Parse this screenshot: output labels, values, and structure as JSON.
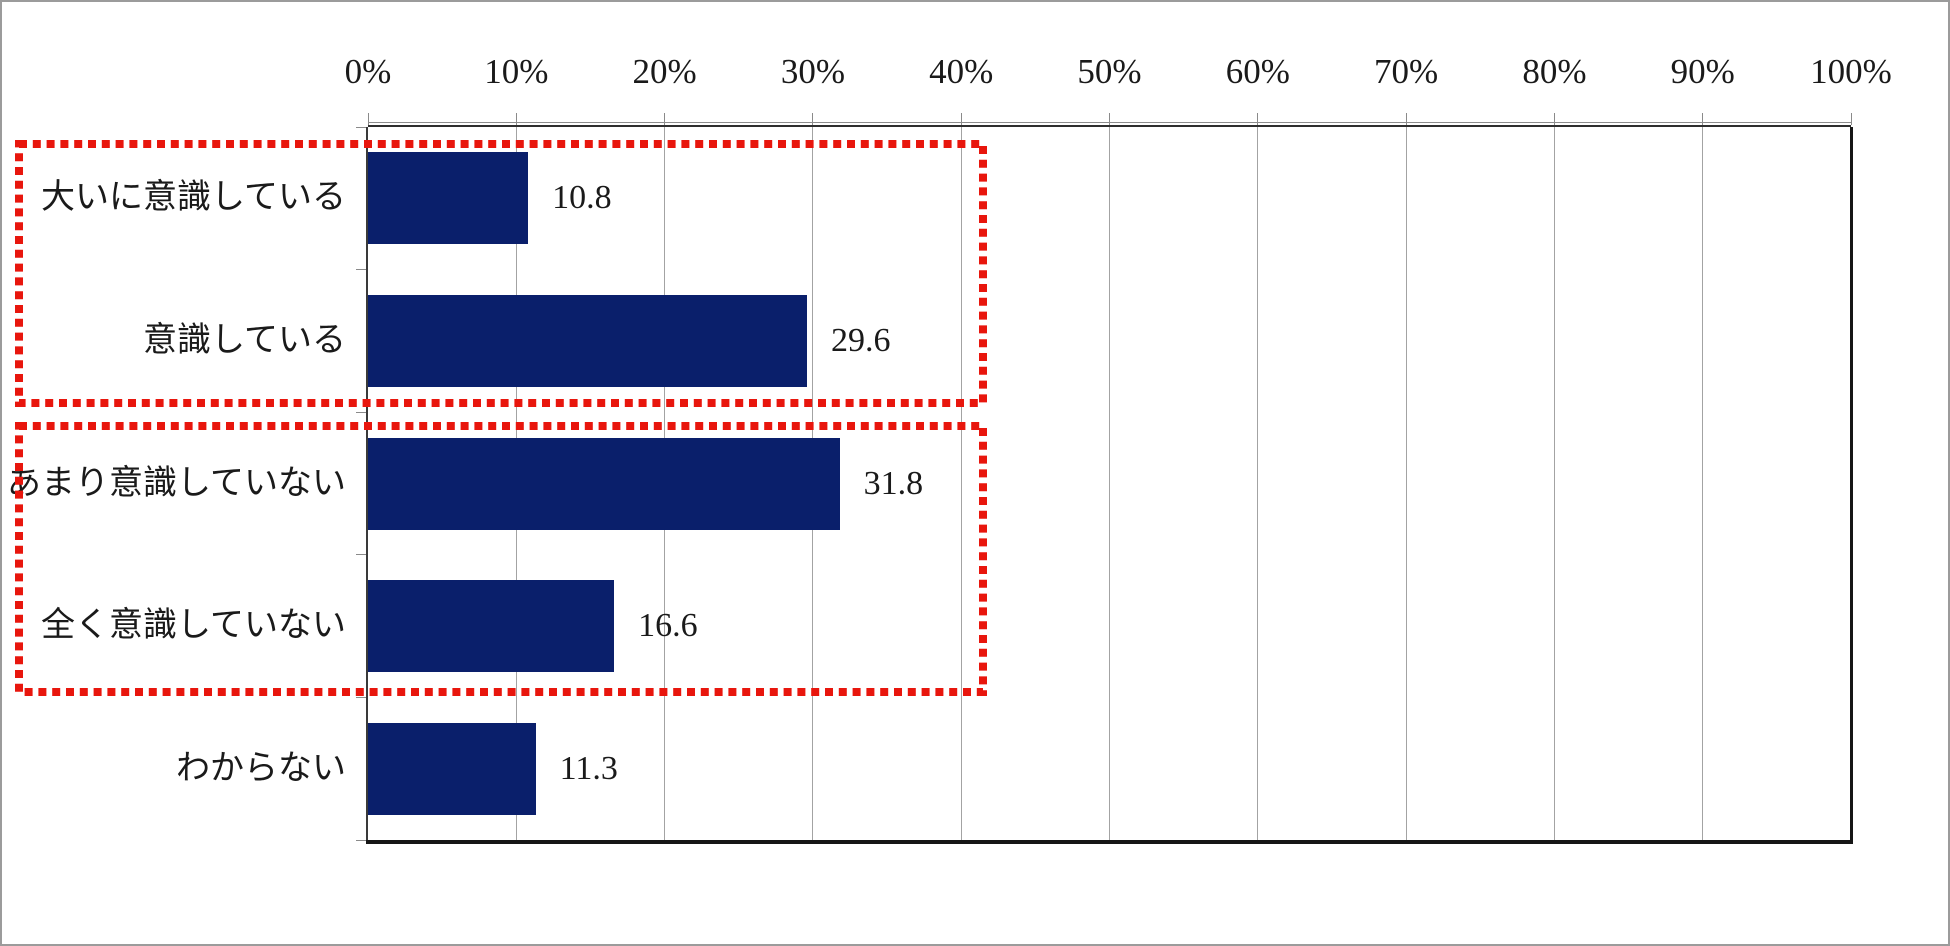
{
  "chart_data": {
    "type": "bar",
    "orientation": "horizontal",
    "title": "",
    "categories": [
      "大いに意識している",
      "意識している",
      "あまり意識していない",
      "全く意識していない",
      "わからない"
    ],
    "values": [
      10.8,
      29.6,
      31.8,
      16.6,
      11.3
    ],
    "value_labels": [
      "10.8",
      "29.6",
      "31.8",
      "16.6",
      "11.3"
    ],
    "x_axis": {
      "position": "top",
      "min": 0,
      "max": 100,
      "tick_labels": [
        "0%",
        "10%",
        "20%",
        "30%",
        "40%",
        "50%",
        "60%",
        "70%",
        "80%",
        "90%",
        "100%"
      ]
    },
    "grid": true,
    "legend": false,
    "bar_color": "#0a1f6b",
    "annotations": [
      {
        "type": "dotted-rect",
        "name": "group-aware",
        "categories": [
          "大いに意識している",
          "意識している"
        ],
        "color": "#e8160d"
      },
      {
        "type": "dotted-rect",
        "name": "group-not-aware",
        "categories": [
          "あまり意識していない",
          "全く意識していない"
        ],
        "color": "#e8160d"
      }
    ]
  },
  "colors": {
    "bar": "#0a1f6b",
    "annotation_red": "#e8160d",
    "gridline": "#a3a3a3",
    "axis_dark": "#1f1f1f",
    "frame_gray": "#9b9b9b",
    "text": "#1a1a1a"
  }
}
